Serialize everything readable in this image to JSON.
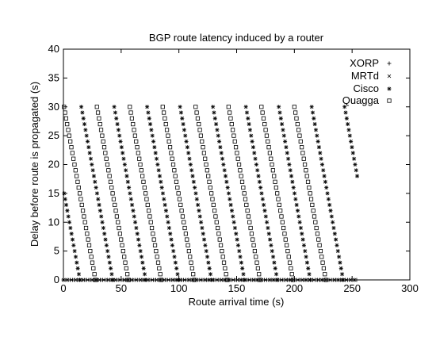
{
  "chart_data": {
    "type": "scatter",
    "title": "BGP route latency induced by a router",
    "xlabel": "Route arrival time (s)",
    "ylabel": "Delay before route is propagated (s)",
    "xlim": [
      0,
      300
    ],
    "ylim": [
      0,
      40
    ],
    "xticks": [
      0,
      50,
      100,
      150,
      200,
      250,
      300
    ],
    "yticks": [
      0,
      5,
      10,
      15,
      20,
      25,
      30,
      35,
      40
    ],
    "grid": false,
    "legend_position": "top-right",
    "series": [
      {
        "name": "XORP",
        "marker": "+",
        "start": 0,
        "end": 255,
        "step": 2,
        "y": 0
      },
      {
        "name": "MRTd",
        "marker": "×",
        "start": 0,
        "end": 255,
        "step": 3.5,
        "y": 0
      },
      {
        "name": "Cisco",
        "marker": "*",
        "period": 28.5,
        "cycles": 10,
        "first_start": -13,
        "y_start": 30,
        "y_end": 0,
        "slope": -1.1
      },
      {
        "name": "Quagga",
        "marker": "□",
        "period": 28.5,
        "cycles": 9,
        "first_start": -28,
        "y_start": 30,
        "y_end": 0,
        "slope": -1.1
      }
    ]
  }
}
